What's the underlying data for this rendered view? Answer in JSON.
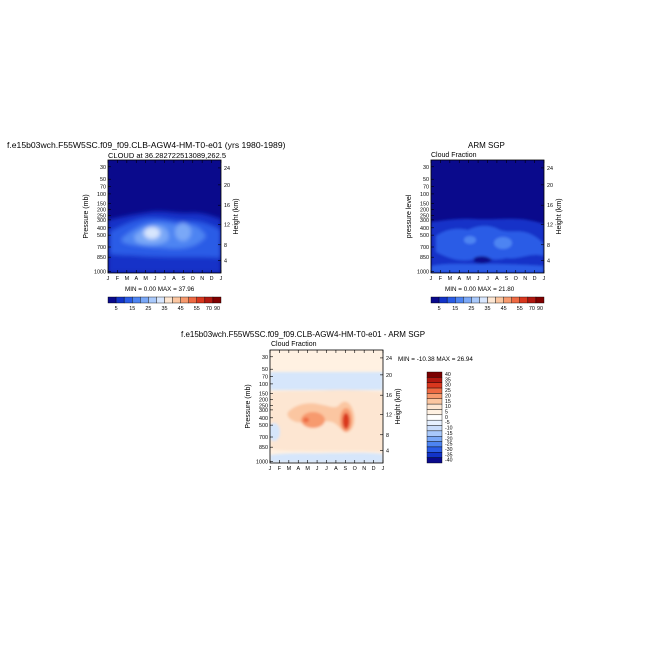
{
  "figure_title": "f.e15b03wch.F55W5SC.f09_f09.CLB-AGW4-HM-T0-e01 (yrs 1980-1989)",
  "chart_data": [
    {
      "type": "heatmap",
      "subtitle_left": "CLOUD at 36.282722513089,262.5",
      "xlabel": "",
      "ylabel": "Pressure (mb)",
      "ylabel_right": "Height (km)",
      "x_ticks": [
        "J",
        "F",
        "M",
        "A",
        "M",
        "J",
        "J",
        "A",
        "S",
        "O",
        "N",
        "D",
        "J"
      ],
      "y_ticks": [
        "30",
        "50",
        "70",
        "100",
        "150",
        "200",
        "250",
        "300",
        "400",
        "500",
        "700",
        "850",
        "1000"
      ],
      "y_ticks_right": [
        "24",
        "20",
        "16",
        "12",
        "8",
        "4"
      ],
      "stats": "MIN =   0.00 MAX =  37.96",
      "colorbar_labels": [
        "5",
        "15",
        "25",
        "35",
        "45",
        "55",
        "70",
        "90"
      ],
      "color_scale": "white-blue-red",
      "features": [
        {
          "month": 5.0,
          "pressure": 240,
          "value": 37.96
        },
        {
          "month": 7.3,
          "pressure": 240,
          "value": 30
        }
      ]
    },
    {
      "type": "heatmap",
      "title": "ARM SGP",
      "subtitle_left": "Cloud Fraction",
      "ylabel": "pressure level",
      "ylabel_right": "Height (km)",
      "x_ticks": [
        "J",
        "F",
        "M",
        "A",
        "M",
        "J",
        "J",
        "A",
        "S",
        "O",
        "N",
        "D",
        "J"
      ],
      "y_ticks": [
        "30",
        "50",
        "70",
        "100",
        "150",
        "200",
        "250",
        "300",
        "400",
        "500",
        "700",
        "850",
        "1000"
      ],
      "y_ticks_right": [
        "24",
        "20",
        "16",
        "12",
        "8",
        "4"
      ],
      "stats": "MIN =   0.00 MAX =  21.80",
      "colorbar_labels": [
        "5",
        "15",
        "25",
        "35",
        "45",
        "55",
        "70",
        "90"
      ]
    },
    {
      "type": "heatmap",
      "title": "f.e15b03wch.F55W5SC.f09_f09.CLB-AGW4-HM-T0-e01 - ARM SGP",
      "subtitle_left": "Cloud Fraction",
      "ylabel": "Pressure (mb)",
      "ylabel_right": "Height (km)",
      "x_ticks": [
        "J",
        "F",
        "M",
        "A",
        "M",
        "J",
        "J",
        "A",
        "S",
        "O",
        "N",
        "D",
        "J"
      ],
      "y_ticks": [
        "30",
        "50",
        "70",
        "100",
        "150",
        "200",
        "250",
        "300",
        "400",
        "500",
        "700",
        "850",
        "1000"
      ],
      "y_ticks_right": [
        "24",
        "20",
        "16",
        "12",
        "8",
        "4"
      ],
      "stats": "MIN = -10.38 MAX =  26.94",
      "colorbar_labels": [
        "40",
        "35",
        "30",
        "25",
        "20",
        "15",
        "10",
        "5",
        "0",
        "-5",
        "-10",
        "-15",
        "-20",
        "-25",
        "-30",
        "-35",
        "-40"
      ],
      "features": [
        {
          "month": 4.2,
          "pressure": 250,
          "value": 15
        },
        {
          "month": 7.4,
          "pressure": 270,
          "value": 26.94
        }
      ]
    }
  ],
  "colors": {
    "seqbar": [
      "#0a0a8c",
      "#1233c8",
      "#2a5ce6",
      "#4d84f2",
      "#7aa8f7",
      "#a9c9fb",
      "#d8e6fd",
      "#fde6d2",
      "#fbc6a1",
      "#f79a6e",
      "#ee6a43",
      "#d9371e",
      "#b11810",
      "#800000"
    ],
    "diffbar": [
      "#7a0000",
      "#b11810",
      "#d9371e",
      "#ee6a43",
      "#f79a6e",
      "#fbc6a1",
      "#fde6d2",
      "#fff1e2",
      "#ffffff",
      "#e6f0ff",
      "#c9dcfb",
      "#a9c9fb",
      "#7aa8f7",
      "#4d84f2",
      "#2a5ce6",
      "#1233c8",
      "#0a0a8c"
    ]
  }
}
